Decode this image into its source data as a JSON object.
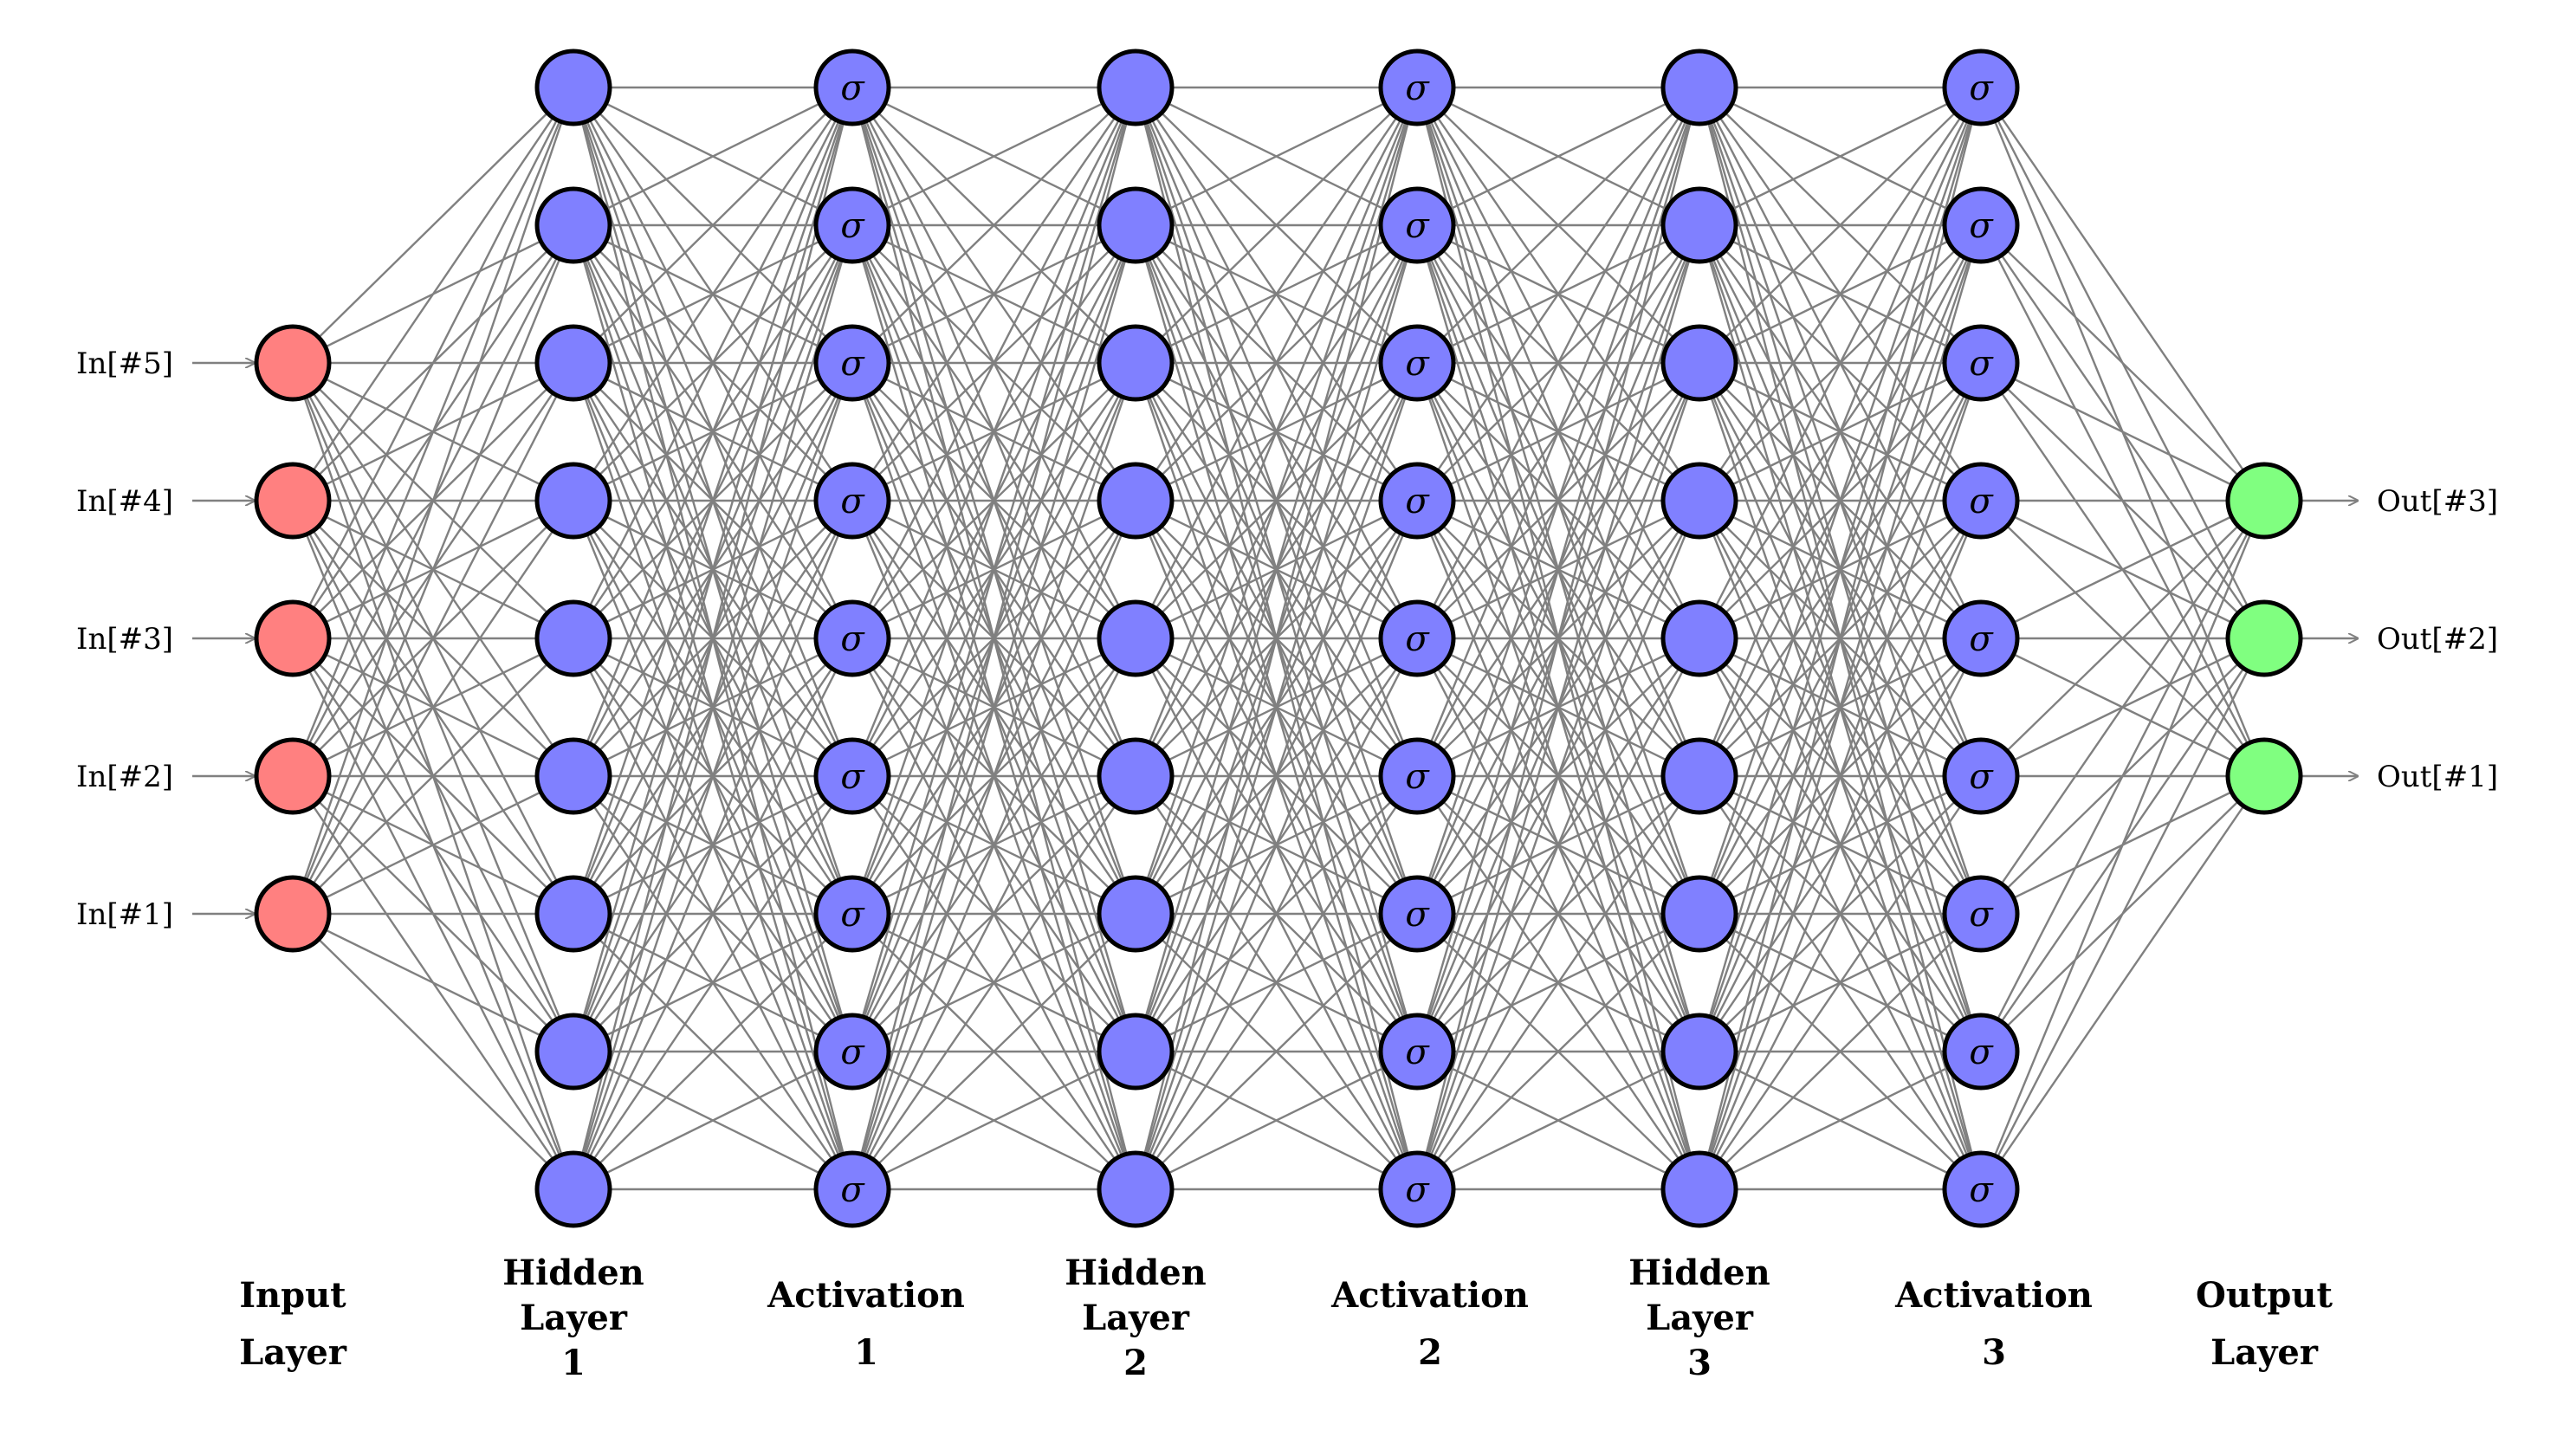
{
  "colors": {
    "input_node": "#ff8080",
    "hidden_node": "#8080ff",
    "activation_node": "#8080ff",
    "output_node": "#80ff80",
    "edge": "#808080",
    "outline": "#000000"
  },
  "activation_symbol": "σ",
  "layers": [
    {
      "kind": "input",
      "count": 5,
      "label": [
        "Input",
        "Layer"
      ]
    },
    {
      "kind": "hidden",
      "count": 9,
      "label": [
        "Hidden",
        "Layer",
        "1"
      ]
    },
    {
      "kind": "activation",
      "count": 9,
      "label": [
        "Activation",
        "1"
      ]
    },
    {
      "kind": "hidden",
      "count": 9,
      "label": [
        "Hidden",
        "Layer",
        "2"
      ]
    },
    {
      "kind": "activation",
      "count": 9,
      "label": [
        "Activation",
        "2"
      ]
    },
    {
      "kind": "hidden",
      "count": 9,
      "label": [
        "Hidden",
        "Layer",
        "3"
      ]
    },
    {
      "kind": "activation",
      "count": 9,
      "label": [
        "Activation",
        "3"
      ]
    },
    {
      "kind": "output",
      "count": 3,
      "label": [
        "Output",
        "Layer"
      ]
    }
  ],
  "inputs": [
    "In[#5]",
    "In[#4]",
    "In[#3]",
    "In[#2]",
    "In[#1]"
  ],
  "outputs": [
    "Out[#3]",
    "Out[#2]",
    "Out[#1]"
  ]
}
